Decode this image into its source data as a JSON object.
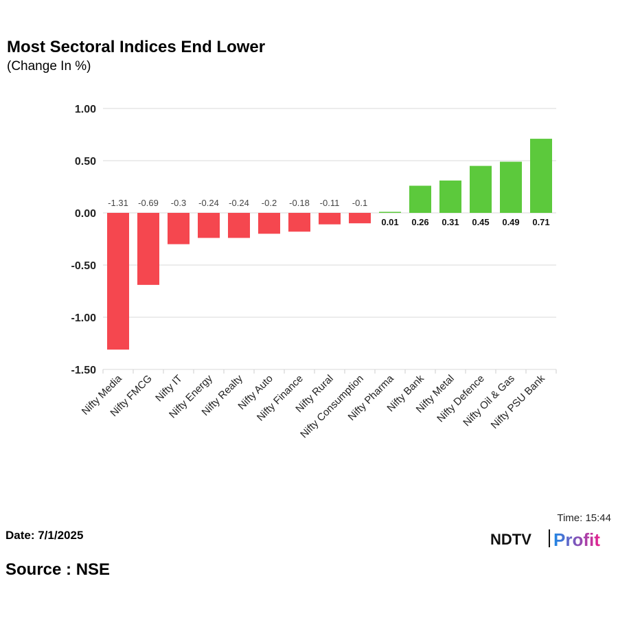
{
  "chart_data": {
    "type": "bar",
    "title": "Most Sectoral Indices End Lower",
    "subtitle": "(Change In %)",
    "categories": [
      "Nifty Media",
      "Nifty FMCG",
      "Nifty IT",
      "Nifty Energy",
      "Nifty Realty",
      "Nifty Auto",
      "Nifty Finance",
      "Nifty Rural",
      "Nifty Consumption",
      "Nifty Pharma",
      "Nifty Bank",
      "Nifty Metal",
      "Nifty Defence",
      "Nifty Oil & Gas",
      "Nifty PSU Bank"
    ],
    "values": [
      -1.31,
      -0.69,
      -0.3,
      -0.24,
      -0.24,
      -0.2,
      -0.18,
      -0.11,
      -0.1,
      0.01,
      0.26,
      0.31,
      0.45,
      0.49,
      0.71
    ],
    "ylim": [
      -1.5,
      1.0
    ],
    "yticks": [
      "1.00",
      "0.50",
      "0.00",
      "-0.50",
      "-1.00",
      "-1.50"
    ],
    "grid": true,
    "colors": {
      "negative": "#f5474f",
      "positive": "#5cc93c"
    }
  },
  "footer": {
    "date": "Date: 7/1/2025",
    "source": "Source : NSE",
    "time": "Time: 15:44",
    "logo": "NDTV Profit"
  }
}
